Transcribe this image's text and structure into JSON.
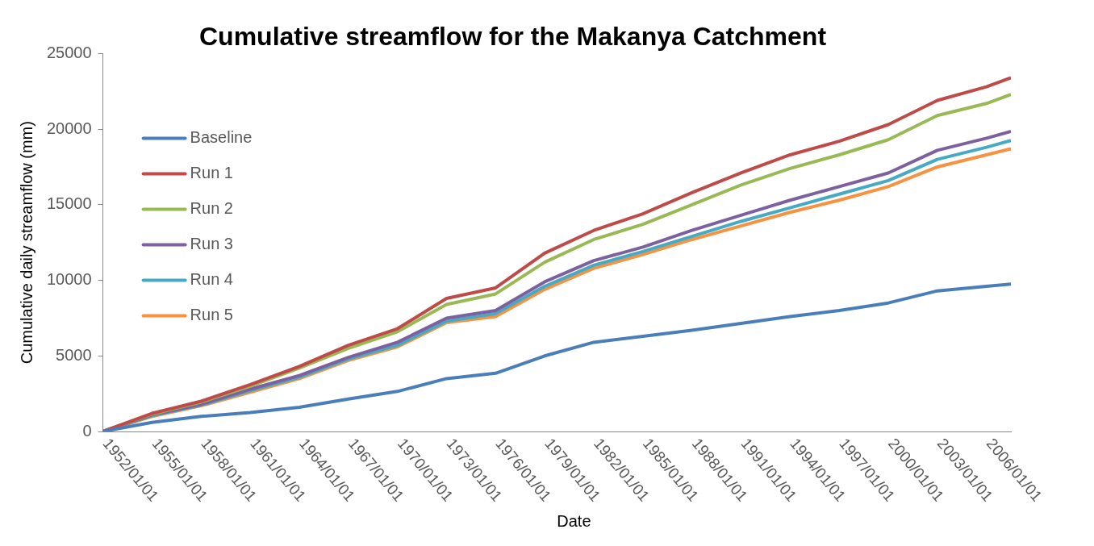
{
  "chart_data": {
    "type": "line",
    "title": "Cumulative streamflow for the Makanya Catchment",
    "xlabel": "Date",
    "ylabel": "Cumulative daily streamflow (mm)",
    "x": [
      "1952-01-01",
      "1955-01-01",
      "1958-01-01",
      "1961-01-01",
      "1964-01-01",
      "1967-01-01",
      "1970-01-01",
      "1973-01-01",
      "1976-01-01",
      "1979-01-01",
      "1982-01-01",
      "1985-01-01",
      "1988-01-01",
      "1991-01-01",
      "1994-01-01",
      "1997-01-01",
      "2000-01-01",
      "2003-01-01",
      "2006-01-01",
      "2007-07-01"
    ],
    "series": [
      {
        "name": "Baseline",
        "color": "#4a7ebb",
        "values": [
          0,
          600,
          1000,
          1250,
          1600,
          2150,
          2650,
          3500,
          3850,
          5000,
          5900,
          6300,
          6700,
          7150,
          7600,
          8000,
          8500,
          9300,
          9600,
          9750
        ]
      },
      {
        "name": "Run 1",
        "color": "#be4b48",
        "values": [
          0,
          1200,
          2000,
          3100,
          4300,
          5700,
          6800,
          8800,
          9500,
          11800,
          13300,
          14400,
          15800,
          17100,
          18300,
          19200,
          20300,
          21900,
          22800,
          23400
        ]
      },
      {
        "name": "Run 2",
        "color": "#98b954",
        "values": [
          0,
          1150,
          1950,
          3000,
          4200,
          5500,
          6600,
          8400,
          9100,
          11200,
          12700,
          13700,
          15000,
          16300,
          17400,
          18300,
          19300,
          20900,
          21700,
          22300
        ]
      },
      {
        "name": "Run 3",
        "color": "#7d60a0",
        "values": [
          0,
          1100,
          1800,
          2800,
          3700,
          4900,
          5900,
          7500,
          8000,
          9900,
          11300,
          12200,
          13300,
          14300,
          15300,
          16200,
          17100,
          18600,
          19400,
          19850
        ]
      },
      {
        "name": "Run 4",
        "color": "#46aac5",
        "values": [
          0,
          1050,
          1750,
          2700,
          3600,
          4800,
          5700,
          7300,
          7800,
          9600,
          11000,
          11900,
          12900,
          13900,
          14800,
          15700,
          16600,
          18000,
          18800,
          19250
        ]
      },
      {
        "name": "Run 5",
        "color": "#f69240",
        "values": [
          0,
          1000,
          1700,
          2600,
          3500,
          4700,
          5600,
          7200,
          7600,
          9400,
          10800,
          11700,
          12700,
          13600,
          14500,
          15300,
          16200,
          17500,
          18300,
          18700
        ]
      }
    ],
    "xlim": [
      "1952-01-01",
      "2007-07-01"
    ],
    "xticks": [
      {
        "value": "1952-01-01",
        "label": "1952/01/01"
      },
      {
        "value": "1955-01-01",
        "label": "1955/01/01"
      },
      {
        "value": "1958-01-01",
        "label": "1958/01/01"
      },
      {
        "value": "1961-01-01",
        "label": "1961/01/01"
      },
      {
        "value": "1964-01-01",
        "label": "1964/01/01"
      },
      {
        "value": "1967-01-01",
        "label": "1967/01/01"
      },
      {
        "value": "1970-01-01",
        "label": "1970/01/01"
      },
      {
        "value": "1973-01-01",
        "label": "1973/01/01"
      },
      {
        "value": "1976-01-01",
        "label": "1976/01/01"
      },
      {
        "value": "1979-01-01",
        "label": "1979/01/01"
      },
      {
        "value": "1982-01-01",
        "label": "1982/01/01"
      },
      {
        "value": "1985-01-01",
        "label": "1985/01/01"
      },
      {
        "value": "1988-01-01",
        "label": "1988/01/01"
      },
      {
        "value": "1991-01-01",
        "label": "1991/01/01"
      },
      {
        "value": "1994-01-01",
        "label": "1994/01/01"
      },
      {
        "value": "1997-01-01",
        "label": "1997/01/01"
      },
      {
        "value": "2000-01-01",
        "label": "2000/01/01"
      },
      {
        "value": "2003-01-01",
        "label": "2003/01/01"
      },
      {
        "value": "2006-01-01",
        "label": "2006/01/01"
      }
    ],
    "ylim": [
      0,
      25000
    ],
    "yticks": [
      0,
      5000,
      10000,
      15000,
      20000,
      25000
    ],
    "grid": false,
    "legend": "top left",
    "marker": "none",
    "line_style": "solid"
  }
}
